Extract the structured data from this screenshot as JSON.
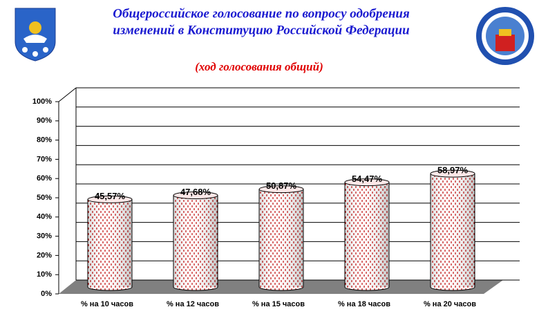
{
  "chart_data": {
    "type": "bar",
    "title": [
      "Общероссийское голосование по вопросу одобрения",
      "изменений в Конституцию Российской Федерации"
    ],
    "subtitle": "(ход голосования общий)",
    "categories": [
      "% на 10 часов",
      "% на 12 часов",
      "% на 15 часов",
      "% на 18 часов",
      "% на 20 часов"
    ],
    "values": [
      45.57,
      47.68,
      50.87,
      54.47,
      58.97
    ],
    "value_labels": [
      "45,57%",
      "47,68%",
      "50,87%",
      "54,47%",
      "58,97%"
    ],
    "color": "#e00000",
    "ylim": [
      0,
      100
    ],
    "yticks": [
      {
        "value": 0,
        "label": "0%"
      },
      {
        "value": 10,
        "label": "10%"
      },
      {
        "value": 20,
        "label": "20%"
      },
      {
        "value": 30,
        "label": "30%"
      },
      {
        "value": 40,
        "label": "40%"
      },
      {
        "value": 50,
        "label": "50%"
      },
      {
        "value": 60,
        "label": "60%"
      },
      {
        "value": 70,
        "label": "70%"
      },
      {
        "value": 80,
        "label": "80%"
      },
      {
        "value": 90,
        "label": "90%"
      },
      {
        "value": 100,
        "label": "100%"
      }
    ],
    "grid": true
  }
}
